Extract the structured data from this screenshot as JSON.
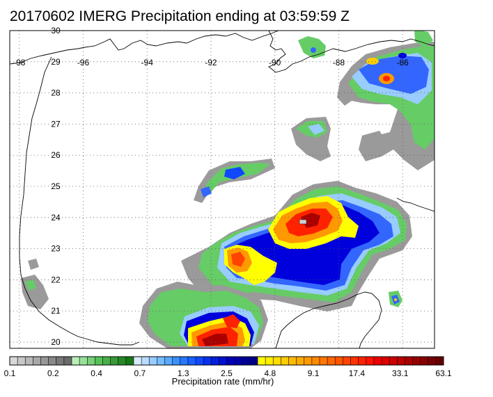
{
  "title": "20170602 IMERG Precipitation ending at 03:59:59 Z",
  "map": {
    "lon_labels": [
      "-98",
      "-96",
      "-94",
      "-92",
      "-90",
      "-88",
      "-86"
    ],
    "lat_labels": [
      "30",
      "29",
      "28",
      "27",
      "26",
      "25",
      "24",
      "23",
      "22",
      "21",
      "20"
    ],
    "lon_range": [
      -98.3,
      -85.0
    ],
    "lat_range": [
      19.8,
      30.0
    ],
    "gridlines": "dotted",
    "precip_colors": {
      "light_gray": "#c8c8c8",
      "gray": "#9a9a9a",
      "green": "#66cc66",
      "light_blue": "#99ccff",
      "blue": "#3366ff",
      "dark_blue": "#0000dd",
      "yellow": "#ffff00",
      "orange": "#ff9900",
      "red": "#ff2200",
      "dark_red": "#aa0000"
    }
  },
  "colorbar": {
    "tick_labels": [
      "0.1",
      "0.2",
      "0.4",
      "0.7",
      "1.3",
      "2.5",
      "4.8",
      "9.1",
      "17.4",
      "33.1",
      "63.1"
    ],
    "label": "Precipitation rate (mm/hr)",
    "colors": [
      "#d8d8d8",
      "#c8c8c8",
      "#b8b8b8",
      "#a8a8a8",
      "#989898",
      "#888888",
      "#787878",
      "#6a6a6a",
      "#b8f0b8",
      "#98e098",
      "#78d078",
      "#58c058",
      "#48b048",
      "#389838",
      "#288828",
      "#187818",
      "#d8ecff",
      "#b8dcff",
      "#98ccff",
      "#78bcff",
      "#58a8ff",
      "#3890ff",
      "#2878ff",
      "#1860ff",
      "#1048ff",
      "#0830ee",
      "#0020dd",
      "#0010cc",
      "#0000bb",
      "#0000aa",
      "#000099",
      "#000088",
      "#ffff00",
      "#ffee00",
      "#ffdd00",
      "#ffcc00",
      "#ffbb00",
      "#ffaa00",
      "#ff9900",
      "#ff8800",
      "#ff7700",
      "#ff6600",
      "#ff5500",
      "#ff4400",
      "#ff3300",
      "#ff2200",
      "#ff1100",
      "#ee0000",
      "#dd0000",
      "#cc0000",
      "#bb0000",
      "#aa0000",
      "#990000",
      "#880000",
      "#770000",
      "#660000"
    ]
  }
}
